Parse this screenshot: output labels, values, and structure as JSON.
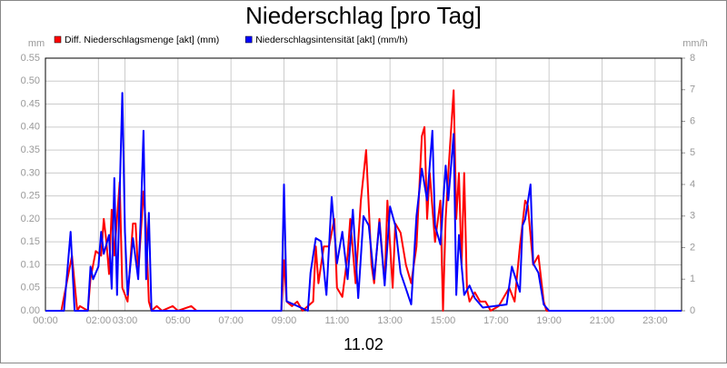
{
  "chart_data": {
    "type": "line",
    "title": "Niederschlag [pro Tag]",
    "xlabel": "11.02",
    "ylabel": "mm",
    "y2label": "mm/h",
    "xlim": [
      0,
      24
    ],
    "xticks": [
      {
        "value": 0,
        "label": "00:00"
      },
      {
        "value": 2,
        "label": "02:00"
      },
      {
        "value": 3,
        "label": "03:00"
      },
      {
        "value": 5,
        "label": "05:00"
      },
      {
        "value": 7,
        "label": "07:00"
      },
      {
        "value": 9,
        "label": "09:00"
      },
      {
        "value": 11,
        "label": "11:00"
      },
      {
        "value": 13,
        "label": "13:00"
      },
      {
        "value": 15,
        "label": "15:00"
      },
      {
        "value": 17,
        "label": "17:00"
      },
      {
        "value": 19,
        "label": "19:00"
      },
      {
        "value": 21,
        "label": "21:00"
      },
      {
        "value": 23,
        "label": "23:00"
      }
    ],
    "ylim": [
      0,
      0.55
    ],
    "yticks": [
      {
        "value": 0,
        "label": "0.00"
      },
      {
        "value": 0.05,
        "label": "0.05"
      },
      {
        "value": 0.1,
        "label": "0.10"
      },
      {
        "value": 0.15,
        "label": "0.15"
      },
      {
        "value": 0.2,
        "label": "0.20"
      },
      {
        "value": 0.25,
        "label": "0.25"
      },
      {
        "value": 0.3,
        "label": "0.30"
      },
      {
        "value": 0.35,
        "label": "0.35"
      },
      {
        "value": 0.4,
        "label": "0.40"
      },
      {
        "value": 0.45,
        "label": "0.45"
      },
      {
        "value": 0.5,
        "label": "0.50"
      },
      {
        "value": 0.55,
        "label": "0.55"
      }
    ],
    "y2lim": [
      0,
      8
    ],
    "y2ticks": [
      0,
      1,
      2,
      3,
      4,
      5,
      6,
      7,
      8
    ],
    "grid": true,
    "legend": "top-left",
    "series": [
      {
        "name": "Diff. Niederschlagsmenge [akt] (mm)",
        "color": "#ff0000",
        "x": [
          0,
          0.6,
          1.0,
          1.2,
          1.3,
          1.6,
          1.7,
          1.9,
          2.1,
          2.2,
          2.3,
          2.4,
          2.5,
          2.6,
          2.8,
          2.9,
          3.1,
          3.3,
          3.4,
          3.5,
          3.7,
          3.8,
          3.9,
          4.0,
          4.2,
          4.4,
          4.8,
          5.0,
          5.5,
          5.7,
          8.9,
          9.0,
          9.1,
          9.3,
          9.5,
          9.7,
          10.1,
          10.2,
          10.3,
          10.5,
          10.7,
          10.9,
          11.0,
          11.2,
          11.4,
          11.5,
          11.7,
          11.9,
          12.1,
          12.3,
          12.4,
          12.6,
          12.8,
          12.9,
          13.1,
          13.2,
          13.4,
          13.6,
          13.8,
          14.0,
          14.2,
          14.3,
          14.4,
          14.5,
          14.7,
          14.9,
          15.0,
          15.1,
          15.2,
          15.4,
          15.5,
          15.6,
          15.7,
          15.8,
          15.9,
          16.0,
          16.2,
          16.4,
          16.6,
          16.8,
          17.1,
          17.3,
          17.5,
          17.7,
          17.9,
          18.1,
          18.2,
          18.4,
          18.6,
          18.8,
          18.9,
          24
        ],
        "values": [
          0,
          0,
          0.12,
          0,
          0.01,
          0,
          0.07,
          0.13,
          0.12,
          0.2,
          0.15,
          0.08,
          0.22,
          0.12,
          0.28,
          0.05,
          0.02,
          0.19,
          0.19,
          0.08,
          0.26,
          0.18,
          0.02,
          0,
          0.01,
          0,
          0.01,
          0,
          0.01,
          0,
          0,
          0.11,
          0.02,
          0.01,
          0.02,
          0,
          0.02,
          0.14,
          0.06,
          0.14,
          0.14,
          0.2,
          0.05,
          0.03,
          0.12,
          0.2,
          0.06,
          0.24,
          0.35,
          0.1,
          0.06,
          0.2,
          0.06,
          0.24,
          0.05,
          0.19,
          0.17,
          0.1,
          0.06,
          0.14,
          0.38,
          0.4,
          0.2,
          0.3,
          0.15,
          0.24,
          0,
          0.2,
          0.3,
          0.48,
          0.2,
          0.3,
          0.1,
          0.3,
          0.05,
          0.02,
          0.04,
          0.02,
          0.02,
          0,
          0.01,
          0.03,
          0.05,
          0.02,
          0.14,
          0.24,
          0.23,
          0.1,
          0.12,
          0.02,
          0,
          0
        ]
      },
      {
        "name": "Niederschlagsintensität [akt] (mm/h)",
        "color": "#0000ff",
        "axis": "y2",
        "x": [
          0,
          0.7,
          0.95,
          1.1,
          1.6,
          1.7,
          1.8,
          2.0,
          2.1,
          2.2,
          2.4,
          2.5,
          2.6,
          2.7,
          2.9,
          3.0,
          3.1,
          3.3,
          3.5,
          3.6,
          3.7,
          3.8,
          3.9,
          4.0,
          8.9,
          9.0,
          9.1,
          9.9,
          10.0,
          10.2,
          10.4,
          10.6,
          10.8,
          11.0,
          11.2,
          11.4,
          11.6,
          11.8,
          12.0,
          12.2,
          12.4,
          12.6,
          12.8,
          13.0,
          13.2,
          13.4,
          13.6,
          13.8,
          14.0,
          14.2,
          14.4,
          14.6,
          14.7,
          14.9,
          15.1,
          15.2,
          15.4,
          15.5,
          15.6,
          15.8,
          16.0,
          16.2,
          16.5,
          17.4,
          17.6,
          17.9,
          18.0,
          18.1,
          18.3,
          18.4,
          18.6,
          18.8,
          19.0,
          24
        ],
        "values": [
          0,
          0,
          2.5,
          0,
          0,
          1.4,
          1.0,
          1.4,
          2.5,
          1.8,
          2.4,
          0.7,
          4.2,
          0.5,
          6.9,
          2.5,
          0.5,
          2.3,
          1.0,
          3.0,
          5.7,
          1.0,
          3.1,
          0,
          0,
          4.0,
          0.3,
          0,
          1.2,
          2.3,
          2.2,
          0.5,
          3.6,
          1.5,
          2.5,
          1.0,
          3.2,
          0.4,
          3.0,
          2.7,
          1.0,
          2.8,
          0.8,
          3.3,
          2.7,
          1.2,
          0.7,
          0.2,
          3.0,
          4.5,
          3.5,
          5.7,
          2.7,
          2.1,
          4.6,
          3.5,
          5.6,
          0.5,
          2.4,
          0.5,
          0.8,
          0.4,
          0.1,
          0.2,
          1.4,
          0.6,
          2.7,
          2.9,
          4.0,
          1.5,
          1.2,
          0.2,
          0,
          0
        ]
      }
    ]
  }
}
